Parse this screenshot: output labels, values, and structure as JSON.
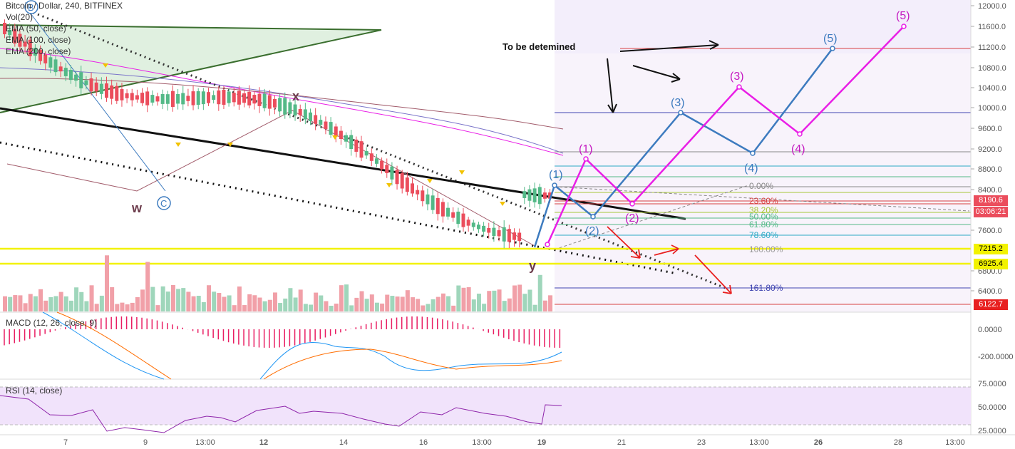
{
  "header": {
    "title": "Bitcoin / Dollar, 240, BITFINEX",
    "indicators": [
      "Vol(20)",
      "EMA (50, close)",
      "EMA (100, close)",
      "EMA (200, close)"
    ]
  },
  "macd": {
    "label": "MACD (12, 26, close, 9)"
  },
  "rsi": {
    "label": "RSI (14, close)"
  },
  "annotations": {
    "to_be_determined": "To be detemined",
    "w": "w",
    "x": "x",
    "y": "y",
    "b": "B",
    "c": "C",
    "blue_waves": [
      "(1)",
      "(2)",
      "(3)",
      "(4)",
      "(5)"
    ],
    "pink_waves": [
      "(1)",
      "(2)",
      "(3)",
      "(4)",
      "(5)"
    ]
  },
  "fib_levels": [
    "0.00%",
    "23.60%",
    "38.20%",
    "50.00%",
    "61.80%",
    "78.60%",
    "100.00%",
    "161.80%"
  ],
  "price_axis": [
    "12000.0",
    "11600.0",
    "11200.0",
    "10800.0",
    "10400.0",
    "10000.0",
    "9600.0",
    "9200.0",
    "8800.0",
    "8400.0",
    "7600.0",
    "6800.0",
    "6400.0"
  ],
  "price_badges": {
    "last": "8190.6",
    "countdown": "03:06:21",
    "upper_support": "7215.2",
    "lower_support": "6925.4",
    "target": "6122.7"
  },
  "macd_axis": [
    "0.0000",
    "-200.0000"
  ],
  "rsi_axis": [
    "75.0000",
    "50.0000",
    "25.0000"
  ],
  "time_axis": [
    "7",
    "9",
    "13:00",
    "12",
    "14",
    "16",
    "13:00",
    "19",
    "21",
    "23",
    "13:00",
    "26",
    "28",
    "13:00"
  ],
  "colors": {
    "bull": "#53b987",
    "bear": "#eb4d5c",
    "blue_wave": "#3d7bbf",
    "pink_wave": "#e91ee6",
    "support": "#f2f200",
    "rsi_bg": "#f1e3fb"
  }
}
